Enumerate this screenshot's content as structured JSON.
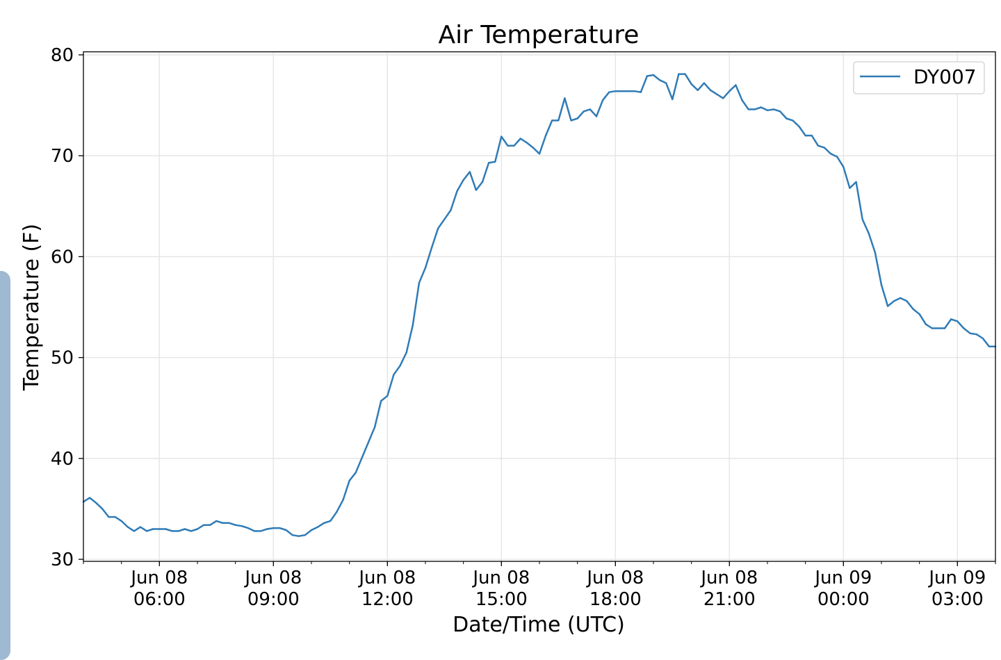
{
  "chart_data": {
    "type": "line",
    "title": "Air Temperature",
    "xlabel": "Date/Time (UTC)",
    "ylabel": "Temperature (F)",
    "x_unit": "hours since Jun 08 00:00 UTC",
    "xlim": [
      4,
      28
    ],
    "ylim": [
      29.8,
      80.3
    ],
    "grid": true,
    "legend_placement": "top-right",
    "yticks": [
      30,
      40,
      50,
      60,
      70,
      80
    ],
    "ytick_labels": [
      "30",
      "40",
      "50",
      "60",
      "70",
      "80"
    ],
    "xticks": [
      6,
      9,
      12,
      15,
      18,
      21,
      24,
      27
    ],
    "xtick_labels": [
      [
        "Jun 08",
        "06:00"
      ],
      [
        "Jun 08",
        "09:00"
      ],
      [
        "Jun 08",
        "12:00"
      ],
      [
        "Jun 08",
        "15:00"
      ],
      [
        "Jun 08",
        "18:00"
      ],
      [
        "Jun 08",
        "21:00"
      ],
      [
        "Jun 09",
        "00:00"
      ],
      [
        "Jun 09",
        "03:00"
      ]
    ],
    "series": [
      {
        "name": "DY007",
        "color": "#2f7bb6",
        "x_start": 4,
        "interval_minutes": 10,
        "values": [
          35.7,
          36.1,
          35.6,
          35.0,
          34.2,
          34.2,
          33.8,
          33.2,
          32.8,
          33.2,
          32.8,
          33.0,
          33.0,
          33.0,
          32.8,
          32.8,
          33.0,
          32.8,
          33.0,
          33.4,
          33.4,
          33.8,
          33.6,
          33.6,
          33.4,
          33.3,
          33.1,
          32.8,
          32.8,
          33.0,
          33.1,
          33.1,
          32.9,
          32.4,
          32.3,
          32.4,
          32.9,
          33.2,
          33.6,
          33.8,
          34.7,
          35.9,
          37.8,
          38.6,
          40.1,
          41.6,
          43.1,
          45.7,
          46.2,
          48.3,
          49.2,
          50.5,
          53.2,
          57.4,
          58.9,
          60.9,
          62.8,
          63.7,
          64.6,
          66.5,
          67.6,
          68.4,
          66.6,
          67.4,
          69.3,
          69.4,
          71.9,
          71.0,
          71.0,
          71.7,
          71.3,
          70.8,
          70.2,
          72.0,
          73.5,
          73.5,
          75.7,
          73.5,
          73.7,
          74.4,
          74.6,
          73.9,
          75.5,
          76.3,
          76.4,
          76.4,
          76.4,
          76.4,
          76.3,
          77.9,
          78.0,
          77.5,
          77.2,
          75.6,
          78.1,
          78.1,
          77.1,
          76.5,
          77.2,
          76.5,
          76.1,
          75.7,
          76.4,
          77.0,
          75.5,
          74.6,
          74.6,
          74.8,
          74.5,
          74.6,
          74.4,
          73.7,
          73.5,
          72.9,
          72.0,
          72.0,
          71.0,
          70.8,
          70.2,
          69.9,
          68.9,
          66.8,
          67.4,
          63.7,
          62.3,
          60.4,
          57.2,
          55.1,
          55.6,
          55.9,
          55.6,
          54.8,
          54.3,
          53.3,
          52.9,
          52.9,
          52.9,
          53.8,
          53.6,
          52.9,
          52.4,
          52.3,
          51.9,
          51.1,
          51.1
        ]
      }
    ]
  }
}
